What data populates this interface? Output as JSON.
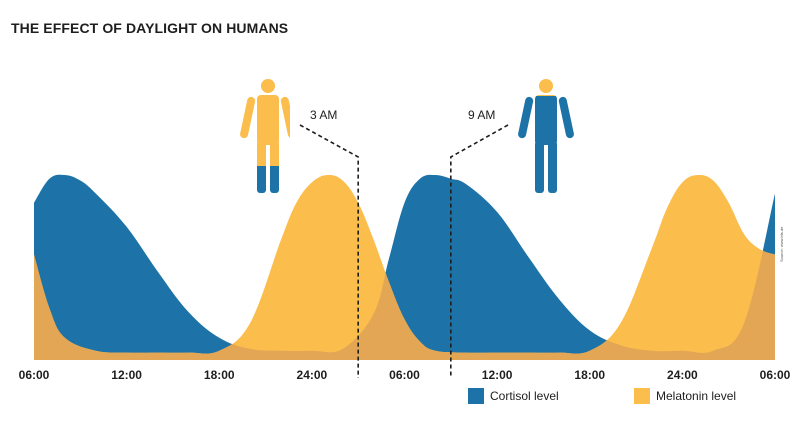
{
  "title": "THE EFFECT OF DAYLIGHT ON HUMANS",
  "source_note": "Source: www.bfs.de",
  "colors": {
    "cortisol": "#1d73a7",
    "melatonin": "#fbbd4c",
    "overlap": "#e3a655",
    "text": "#1e1e1e"
  },
  "callouts": [
    {
      "label": "3 AM",
      "hour": 27
    },
    {
      "label": "9 AM",
      "hour": 33
    }
  ],
  "figures": [
    {
      "name": "person-3am",
      "icon": "human-figure-mostly-yellow"
    },
    {
      "name": "person-9am",
      "icon": "human-figure-mostly-blue"
    }
  ],
  "legend": [
    {
      "label": "Cortisol level",
      "color": "#1d73a7"
    },
    {
      "label": "Melatonin level",
      "color": "#fbbd4c"
    }
  ],
  "chart_data": {
    "type": "area",
    "title": "THE EFFECT OF DAYLIGHT ON HUMANS",
    "xlabel": "",
    "ylabel": "",
    "x_ticks": [
      "06:00",
      "12:00",
      "18:00",
      "24:00",
      "06:00",
      "12:00",
      "18:00",
      "24:00",
      "06:00"
    ],
    "x_range_hours": [
      6,
      54
    ],
    "y_range": [
      0,
      1
    ],
    "grid": false,
    "legend_position": "bottom-right",
    "series": [
      {
        "name": "Cortisol level",
        "color": "#1d73a7",
        "x_hours": [
          6,
          7,
          8,
          9,
          10,
          12,
          14,
          16,
          18,
          20,
          22,
          24,
          26,
          28,
          29,
          30,
          31,
          32,
          33,
          34,
          36,
          38,
          40,
          42,
          44,
          46,
          48,
          50,
          52,
          54
        ],
        "values": [
          0.85,
          0.98,
          1.0,
          0.97,
          0.9,
          0.72,
          0.48,
          0.26,
          0.12,
          0.06,
          0.05,
          0.05,
          0.06,
          0.25,
          0.55,
          0.85,
          0.98,
          1.0,
          0.98,
          0.95,
          0.8,
          0.56,
          0.33,
          0.16,
          0.08,
          0.05,
          0.05,
          0.05,
          0.2,
          0.9
        ]
      },
      {
        "name": "Melatonin level",
        "color": "#fbbd4c",
        "x_hours": [
          6,
          7,
          8,
          10,
          12,
          14,
          16,
          18,
          20,
          22,
          23,
          24,
          25,
          26,
          27,
          28,
          29,
          30,
          31,
          32,
          34,
          36,
          38,
          40,
          42,
          44,
          46,
          47,
          48,
          49,
          50,
          51,
          52,
          53,
          54
        ],
        "values": [
          0.57,
          0.28,
          0.12,
          0.05,
          0.04,
          0.04,
          0.04,
          0.05,
          0.2,
          0.65,
          0.85,
          0.96,
          1.0,
          0.97,
          0.85,
          0.65,
          0.42,
          0.22,
          0.1,
          0.05,
          0.04,
          0.04,
          0.04,
          0.04,
          0.05,
          0.2,
          0.6,
          0.82,
          0.96,
          1.0,
          0.97,
          0.85,
          0.68,
          0.6,
          0.57
        ]
      }
    ]
  }
}
